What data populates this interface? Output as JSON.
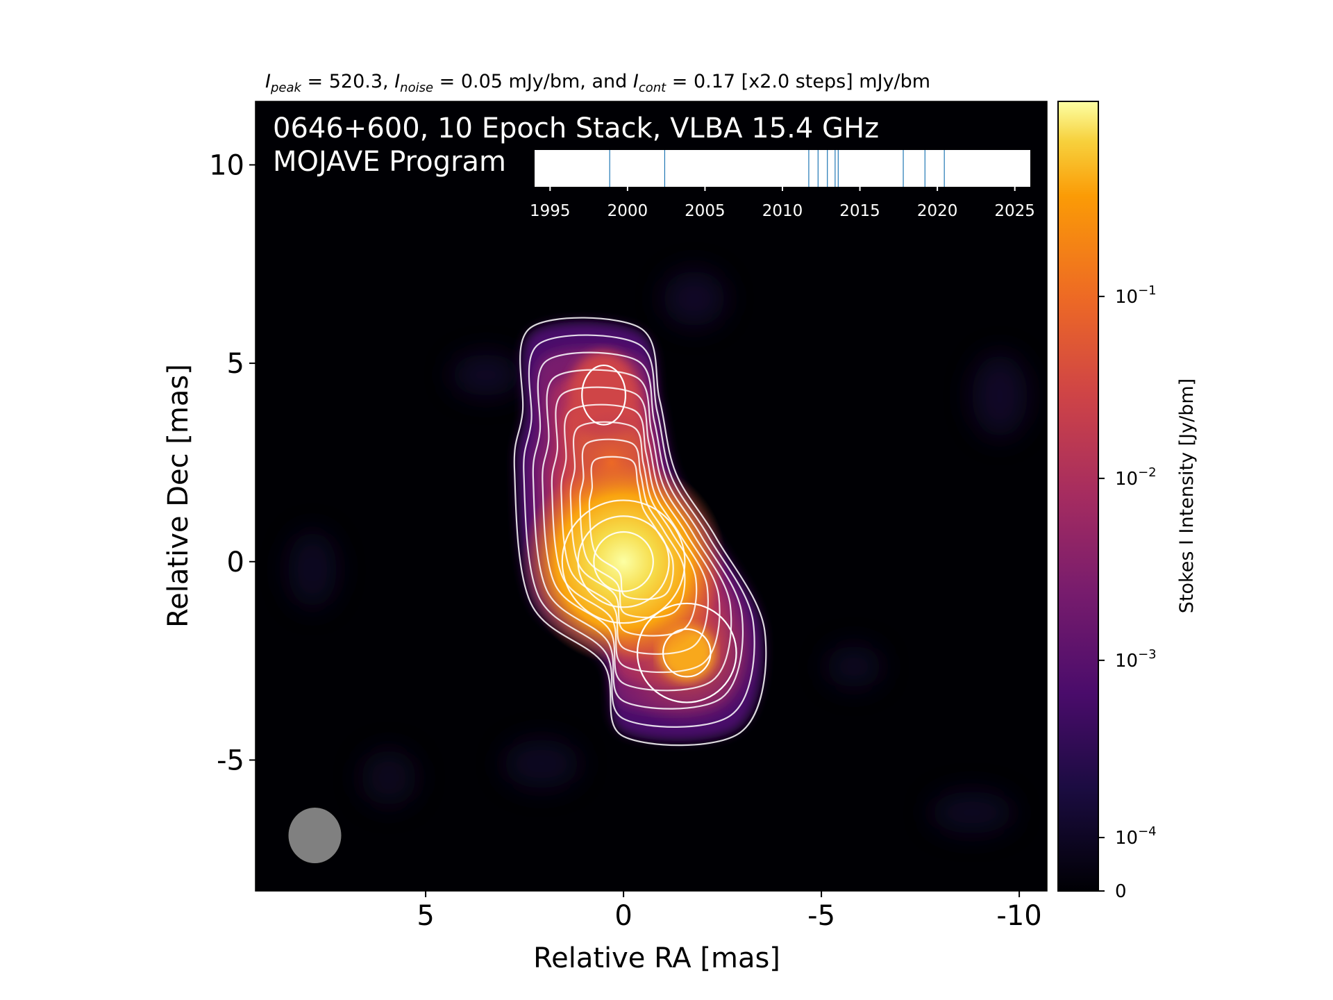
{
  "header": {
    "peak_sym": "I",
    "peak_sub": "peak",
    "peak_val": " = 520.3, ",
    "noise_sym": "I",
    "noise_sub": "noise",
    "noise_val": " = 0.05 mJy/bm, and ",
    "cont_sym": "I",
    "cont_sub": "cont",
    "cont_val": " = 0.17 [x2.0 steps] mJy/bm"
  },
  "overlay": {
    "line1": "0646+600, 10 Epoch Stack, VLBA 15.4 GHz",
    "line2": "MOJAVE Program"
  },
  "colors": {
    "background": "#000004",
    "contour": "#ffffff",
    "beam": "#808080",
    "epoch_line": "#1f77b4"
  },
  "chart_data": [
    {
      "type": "heatmap",
      "title": "",
      "xlabel": "Relative RA [mas]",
      "ylabel": "Relative Dec [mas]",
      "xlim": [
        9.3,
        -10.7
      ],
      "ylim": [
        -8.3,
        11.6
      ],
      "x_ticks": [
        5,
        0,
        -5,
        -10
      ],
      "x_tick_labels": [
        "5",
        "0",
        "-5",
        "-10"
      ],
      "y_ticks": [
        10,
        5,
        0,
        -5
      ],
      "y_tick_labels": [
        "10",
        "5",
        "0",
        "-5"
      ],
      "colormap": "inferno",
      "grid": false,
      "components": [
        {
          "x": 0.0,
          "y": 0.0,
          "peak_jy": 0.52
        },
        {
          "x": 0.5,
          "y": 4.2,
          "peak_jy": 0.01
        },
        {
          "x": 0.3,
          "y": 2.5,
          "peak_jy": 0.02
        },
        {
          "x": -1.6,
          "y": -2.3,
          "peak_jy": 0.06
        }
      ],
      "contour_levels_mjy": [
        0.17,
        0.34,
        0.68,
        1.36,
        2.72,
        5.44,
        10.88,
        21.76,
        43.52,
        87.04,
        174.08
      ],
      "beam": {
        "x": 7.8,
        "y": -6.9
      }
    },
    {
      "type": "colorbar",
      "label": "Stokes I Intensity [Jy/bm]",
      "scale": "log",
      "ticks": [
        0,
        0.0001,
        0.001,
        0.01,
        0.1
      ],
      "tick_base": [
        "0",
        "10",
        "10",
        "10",
        "10"
      ],
      "tick_exp": [
        "",
        "−4",
        "−3",
        "−2",
        "−1"
      ]
    },
    {
      "type": "timeline",
      "x_range": [
        1994.0,
        2026.0
      ],
      "ticks": [
        1995,
        2000,
        2005,
        2010,
        2015,
        2020,
        2025
      ],
      "tick_labels": [
        "1995",
        "2000",
        "2005",
        "2010",
        "2015",
        "2020",
        "2025"
      ],
      "epochs": [
        1998.85,
        2002.4,
        2011.7,
        2012.3,
        2012.9,
        2013.4,
        2013.6,
        2017.8,
        2019.2,
        2020.45
      ]
    }
  ]
}
